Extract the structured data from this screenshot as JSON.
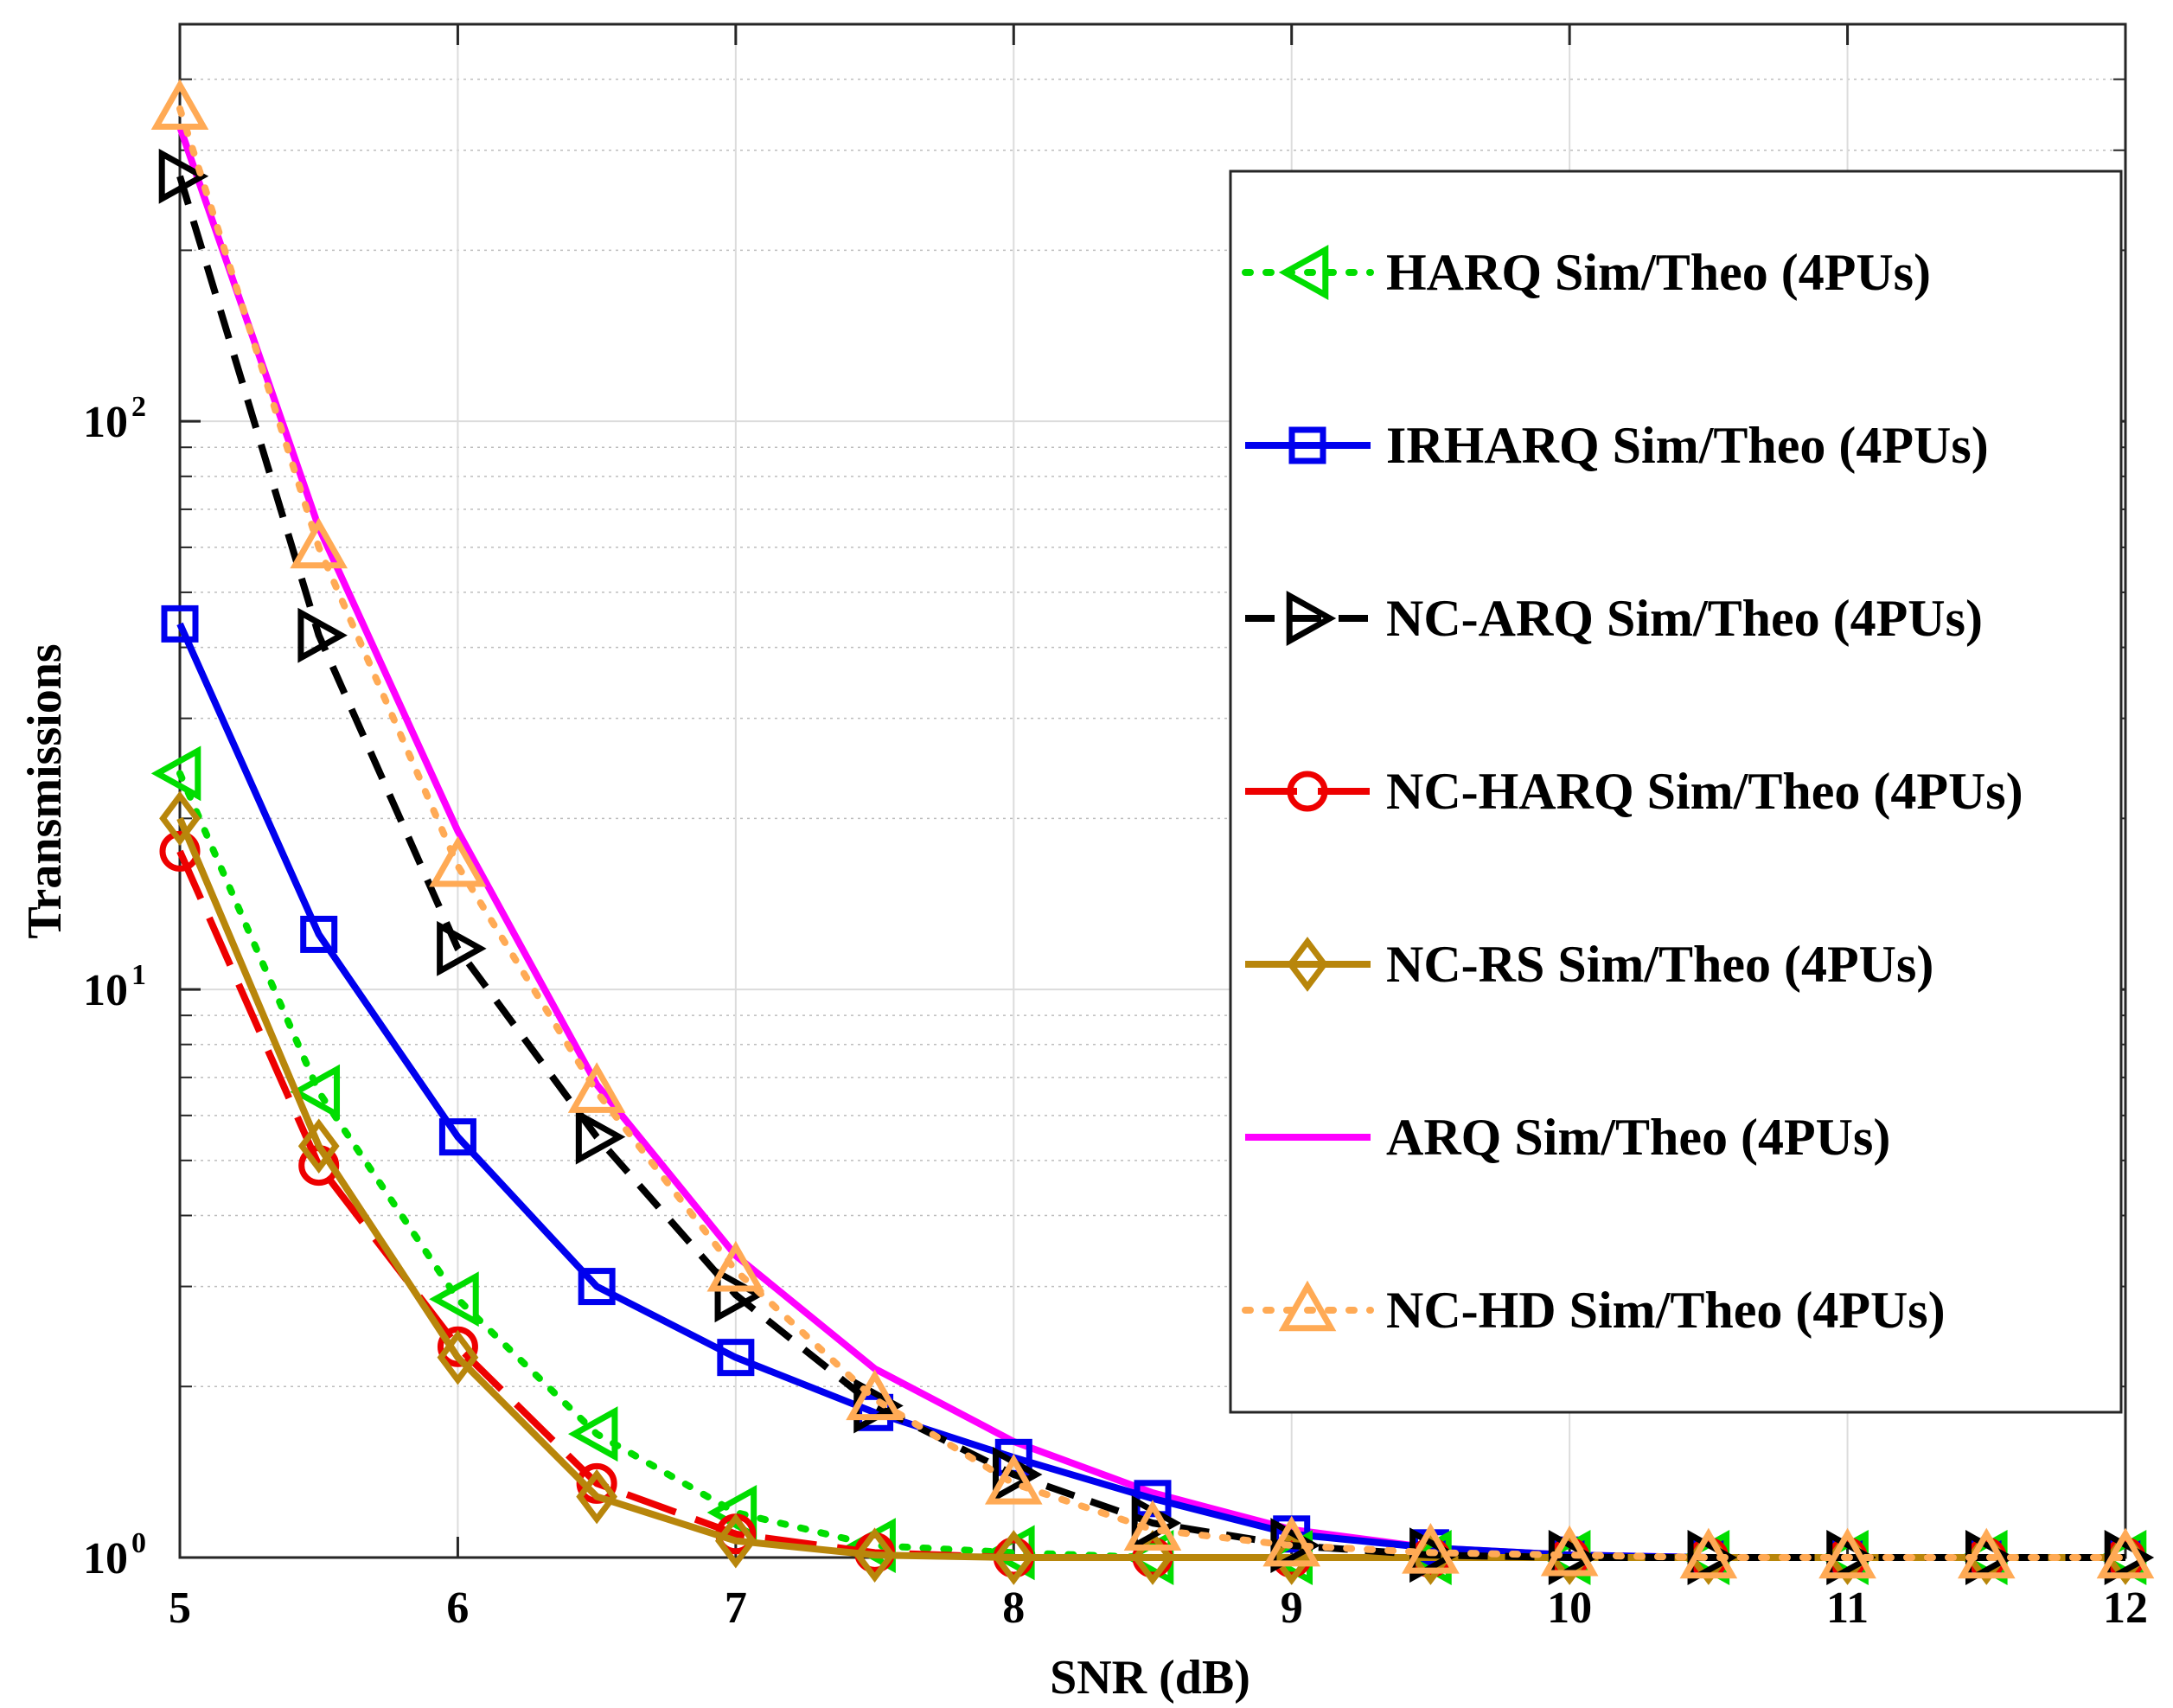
{
  "chart_data": {
    "type": "line",
    "title": "",
    "xlabel": "SNR (dB)",
    "ylabel": "Transmissions",
    "xlim": [
      5,
      12
    ],
    "ylim": [
      1,
      500
    ],
    "yscale": "log",
    "grid": true,
    "legend_position": "top-right",
    "x_ticks": [
      5,
      6,
      7,
      8,
      9,
      10,
      11,
      12
    ],
    "x_tick_labels": [
      "5",
      "6",
      "7",
      "8",
      "9",
      "10",
      "11",
      "12"
    ],
    "y_ticks": [
      {
        "value": 1,
        "base": "10",
        "exp": "0"
      },
      {
        "value": 10,
        "base": "10",
        "exp": "1"
      },
      {
        "value": 100,
        "base": "10",
        "exp": "2"
      }
    ],
    "series": [
      {
        "name": "HARQ Sim/Theo (4PUs)",
        "color": "#00dd00",
        "dash": "dot",
        "marker": "triangle-left",
        "x": [
          5,
          5.5,
          6,
          6.5,
          7,
          7.5,
          8,
          8.5,
          9,
          9.5,
          10,
          10.5,
          11,
          11.5,
          12
        ],
        "values": [
          24,
          6.6,
          2.85,
          1.65,
          1.2,
          1.05,
          1.02,
          1,
          1,
          1,
          1,
          1,
          1,
          1,
          1
        ]
      },
      {
        "name": "IRHARQ Sim/Theo (4PUs)",
        "color": "#0000ee",
        "dash": "solid",
        "marker": "square",
        "x": [
          5,
          5.5,
          6,
          6.5,
          7,
          7.5,
          8,
          8.5,
          9,
          9.5,
          10,
          10.5,
          11,
          11.5,
          12
        ],
        "values": [
          44,
          12.5,
          5.5,
          3.0,
          2.25,
          1.8,
          1.5,
          1.27,
          1.1,
          1.04,
          1.01,
          1,
          1,
          1,
          1
        ]
      },
      {
        "name": "NC-ARQ Sim/Theo (4PUs)",
        "color": "#000000",
        "dash": "dash",
        "marker": "triangle-right",
        "x": [
          5,
          5.5,
          6,
          6.5,
          7,
          7.5,
          8,
          8.5,
          9,
          9.5,
          10,
          10.5,
          11,
          11.5,
          12
        ],
        "values": [
          270,
          42,
          11.8,
          5.5,
          2.9,
          1.85,
          1.4,
          1.15,
          1.05,
          1.01,
          1,
          1,
          1,
          1,
          1
        ]
      },
      {
        "name": "NC-HARQ Sim/Theo (4PUs)",
        "color": "#ee0000",
        "dash": "longdash",
        "marker": "circle",
        "x": [
          5,
          5.5,
          6,
          6.5,
          7,
          7.5,
          8,
          8.5,
          9,
          9.5,
          10,
          10.5,
          11,
          11.5,
          12
        ],
        "values": [
          17.5,
          4.9,
          2.35,
          1.35,
          1.1,
          1.02,
          1,
          1,
          1,
          1,
          1,
          1,
          1,
          1,
          1
        ]
      },
      {
        "name": "NC-RS Sim/Theo (4PUs)",
        "color": "#b8860b",
        "dash": "solid",
        "marker": "diamond",
        "x": [
          5,
          5.5,
          6,
          6.5,
          7,
          7.5,
          8,
          8.5,
          9,
          9.5,
          10,
          10.5,
          11,
          11.5,
          12
        ],
        "values": [
          20,
          5.3,
          2.25,
          1.28,
          1.07,
          1.01,
          1,
          1,
          1,
          1,
          1,
          1,
          1,
          1,
          1
        ]
      },
      {
        "name": "ARQ Sim/Theo (4PUs)",
        "color": "#ff00ff",
        "dash": "solid",
        "marker": "none",
        "x": [
          5,
          5.5,
          6,
          6.5,
          7,
          7.5,
          8,
          8.5,
          9,
          9.5,
          10,
          10.5,
          11,
          11.5,
          12
        ],
        "values": [
          330,
          65,
          19,
          6.8,
          3.4,
          2.15,
          1.6,
          1.3,
          1.12,
          1.04,
          1.01,
          1,
          1,
          1,
          1
        ]
      },
      {
        "name": "NC-HD Sim/Theo (4PUs)",
        "color": "#ffaa55",
        "dash": "dot",
        "marker": "triangle-up",
        "x": [
          5,
          5.5,
          6,
          6.5,
          7,
          7.5,
          8,
          8.5,
          9,
          9.5,
          10,
          10.5,
          11,
          11.5,
          12
        ],
        "values": [
          355,
          60,
          16.5,
          6.6,
          3.2,
          1.9,
          1.35,
          1.12,
          1.05,
          1.02,
          1.01,
          1,
          1,
          1,
          1
        ]
      }
    ]
  }
}
